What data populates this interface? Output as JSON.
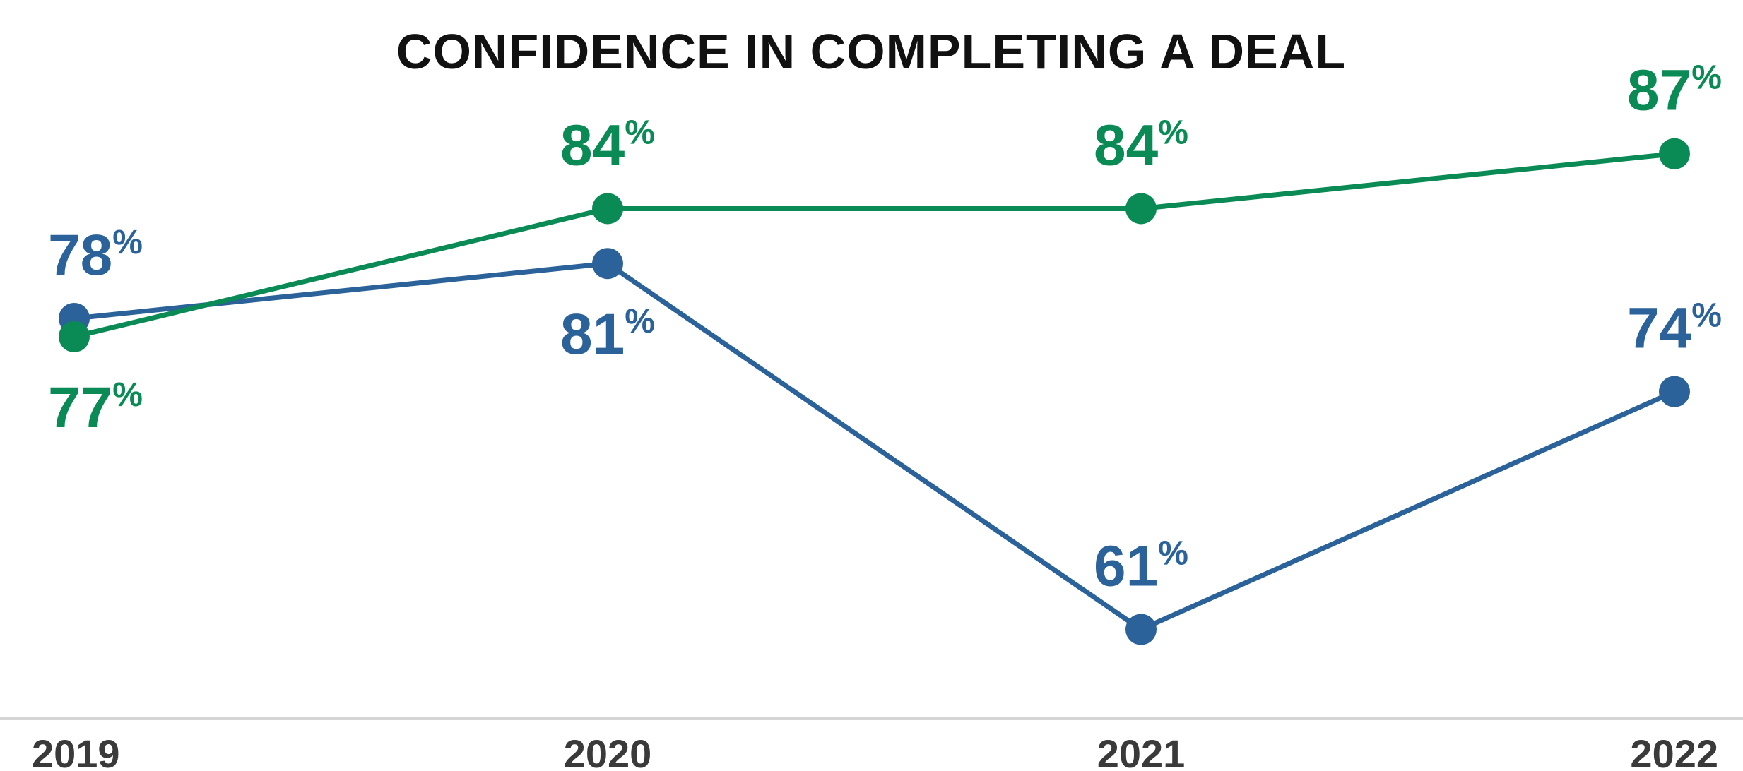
{
  "chart_data": {
    "type": "line",
    "title": "CONFIDENCE IN COMPLETING A DEAL",
    "xlabel": "",
    "ylabel": "",
    "categories": [
      "2019",
      "2020",
      "2021",
      "2022"
    ],
    "ylim": [
      55,
      90
    ],
    "grid": false,
    "legend": "none",
    "value_suffix": "%",
    "series": [
      {
        "color": "#2a6299",
        "values": [
          78,
          81,
          61,
          74
        ],
        "label_placement": [
          "above",
          "below",
          "above",
          "above"
        ]
      },
      {
        "color": "#0a8a55",
        "values": [
          77,
          84,
          84,
          87
        ],
        "label_placement": [
          "below",
          "above",
          "above",
          "above"
        ]
      }
    ]
  }
}
